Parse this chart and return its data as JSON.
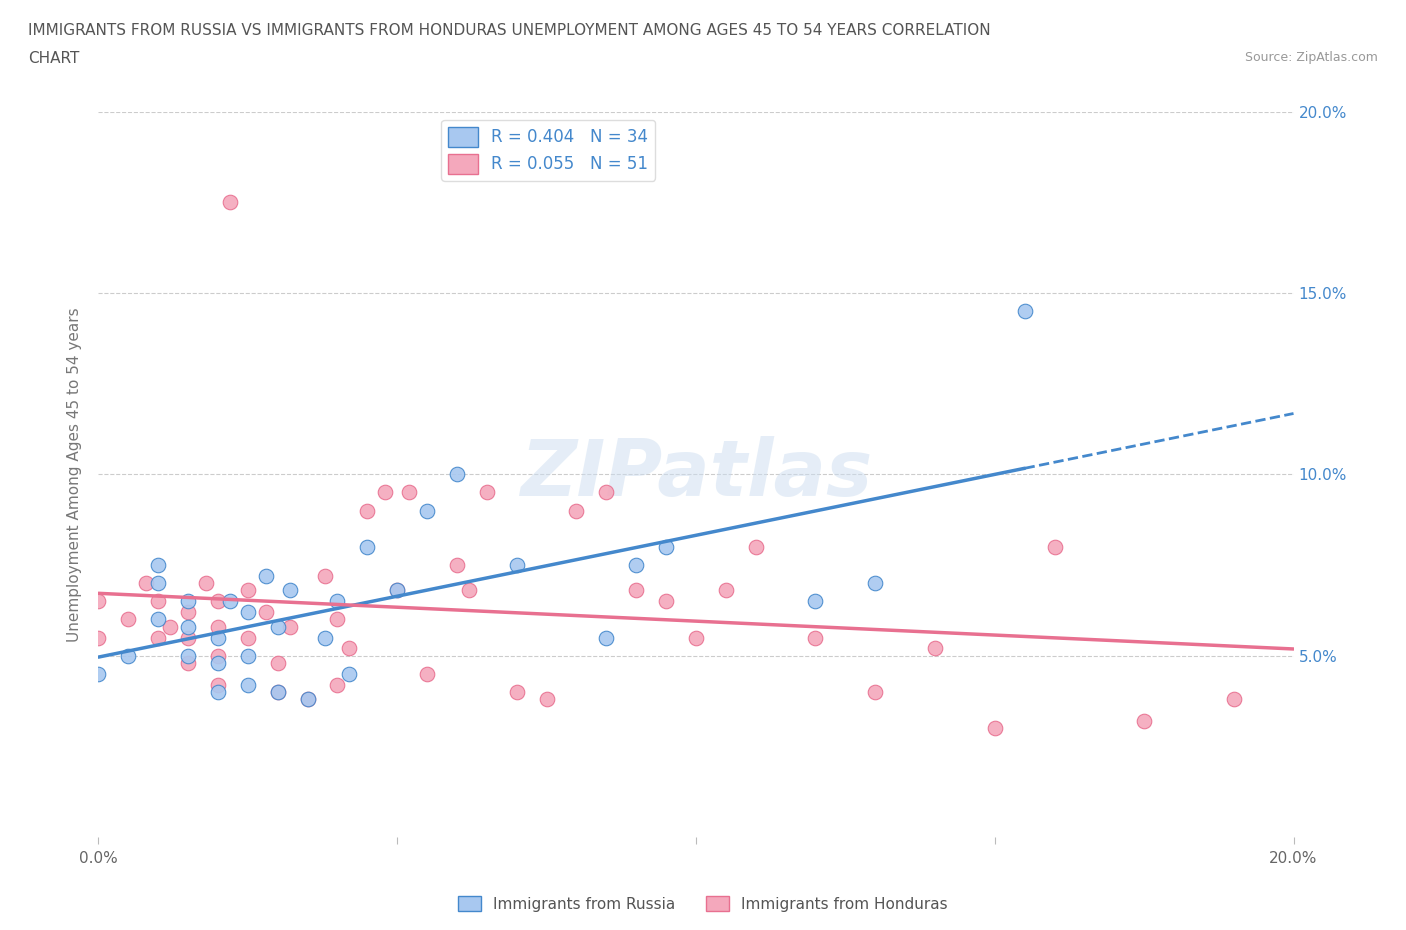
{
  "title_line1": "IMMIGRANTS FROM RUSSIA VS IMMIGRANTS FROM HONDURAS UNEMPLOYMENT AMONG AGES 45 TO 54 YEARS CORRELATION",
  "title_line2": "CHART",
  "source": "Source: ZipAtlas.com",
  "ylabel": "Unemployment Among Ages 45 to 54 years",
  "xlim": [
    0.0,
    0.2
  ],
  "ylim": [
    0.0,
    0.2
  ],
  "xticks": [
    0.0,
    0.05,
    0.1,
    0.15,
    0.2
  ],
  "yticks": [
    0.0,
    0.05,
    0.1,
    0.15,
    0.2
  ],
  "russia_color": "#a8c8f0",
  "honduras_color": "#f4a8bc",
  "russia_line_color": "#4488cc",
  "honduras_line_color": "#e87090",
  "russia_R": 0.404,
  "russia_N": 34,
  "honduras_R": 0.055,
  "honduras_N": 51,
  "watermark": "ZIPatlas",
  "legend_label_russia": "Immigrants from Russia",
  "legend_label_honduras": "Immigrants from Honduras",
  "russia_x": [
    0.0,
    0.005,
    0.01,
    0.01,
    0.01,
    0.015,
    0.015,
    0.015,
    0.02,
    0.02,
    0.02,
    0.022,
    0.025,
    0.025,
    0.025,
    0.028,
    0.03,
    0.03,
    0.032,
    0.035,
    0.038,
    0.04,
    0.042,
    0.045,
    0.05,
    0.055,
    0.06,
    0.07,
    0.085,
    0.09,
    0.095,
    0.12,
    0.13,
    0.155
  ],
  "russia_y": [
    0.045,
    0.05,
    0.06,
    0.07,
    0.075,
    0.05,
    0.058,
    0.065,
    0.04,
    0.048,
    0.055,
    0.065,
    0.042,
    0.05,
    0.062,
    0.072,
    0.04,
    0.058,
    0.068,
    0.038,
    0.055,
    0.065,
    0.045,
    0.08,
    0.068,
    0.09,
    0.1,
    0.075,
    0.055,
    0.075,
    0.08,
    0.065,
    0.07,
    0.145
  ],
  "honduras_x": [
    0.0,
    0.0,
    0.005,
    0.008,
    0.01,
    0.01,
    0.012,
    0.015,
    0.015,
    0.015,
    0.018,
    0.02,
    0.02,
    0.02,
    0.02,
    0.022,
    0.025,
    0.025,
    0.028,
    0.03,
    0.03,
    0.032,
    0.035,
    0.038,
    0.04,
    0.04,
    0.042,
    0.045,
    0.048,
    0.05,
    0.052,
    0.055,
    0.06,
    0.062,
    0.065,
    0.07,
    0.075,
    0.08,
    0.085,
    0.09,
    0.095,
    0.1,
    0.105,
    0.11,
    0.12,
    0.13,
    0.14,
    0.15,
    0.16,
    0.175,
    0.19
  ],
  "honduras_y": [
    0.055,
    0.065,
    0.06,
    0.07,
    0.055,
    0.065,
    0.058,
    0.048,
    0.055,
    0.062,
    0.07,
    0.042,
    0.05,
    0.058,
    0.065,
    0.175,
    0.055,
    0.068,
    0.062,
    0.04,
    0.048,
    0.058,
    0.038,
    0.072,
    0.042,
    0.06,
    0.052,
    0.09,
    0.095,
    0.068,
    0.095,
    0.045,
    0.075,
    0.068,
    0.095,
    0.04,
    0.038,
    0.09,
    0.095,
    0.068,
    0.065,
    0.055,
    0.068,
    0.08,
    0.055,
    0.04,
    0.052,
    0.03,
    0.08,
    0.032,
    0.038
  ],
  "background_color": "#ffffff",
  "grid_color": "#cccccc",
  "title_color": "#555555",
  "annotation_color": "#4488cc",
  "legend_text_color": "#4488cc"
}
